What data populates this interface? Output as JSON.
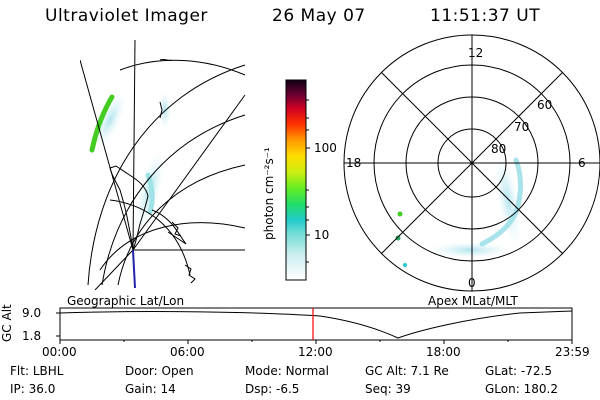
{
  "header": {
    "title": "Ultraviolet Imager",
    "date": "26 May 07",
    "time": "11:51:37 UT"
  },
  "colorbar": {
    "axis_label": "photon cm⁻²s⁻¹",
    "ticks": [
      "100",
      "10"
    ]
  },
  "polar": {
    "mlt_labels": [
      "12",
      "18",
      "6",
      "0"
    ],
    "lat_labels": [
      "60",
      "70",
      "80"
    ]
  },
  "panel_labels": {
    "left": "Geographic Lat/Lon",
    "right": "Apex MLat/MLT"
  },
  "altitude_plot": {
    "ylabel": "GC Alt",
    "y_top": "9.0",
    "y_bottom": "1.8",
    "x_ticks": [
      "00:00",
      "06:00",
      "12:00",
      "18:00",
      "23:59"
    ]
  },
  "info": {
    "row1": [
      {
        "label": "Flt:",
        "value": "LBHL"
      },
      {
        "label": "Door:",
        "value": "Open"
      },
      {
        "label": "Mode:",
        "value": "Normal"
      },
      {
        "label": "GC Alt:",
        "value": "7.1 Re"
      },
      {
        "label": "GLat:",
        "value": "-72.5"
      }
    ],
    "row2": [
      {
        "label": "IP:",
        "value": "36.0"
      },
      {
        "label": "Gain:",
        "value": "14"
      },
      {
        "label": "Dsp:",
        "value": "-6.5"
      },
      {
        "label": "Seq:",
        "value": "39"
      },
      {
        "label": "GLon:",
        "value": "180.2"
      }
    ]
  },
  "colors": {
    "marker": "#ff0000",
    "aurora_faint": "#bfe8ee",
    "aurora_green": "#44cc22"
  }
}
